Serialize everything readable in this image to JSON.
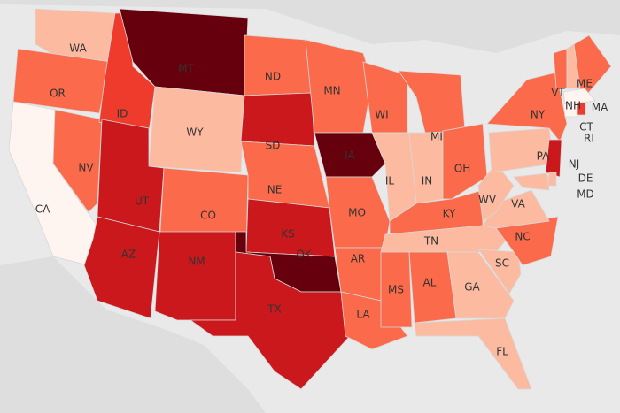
{
  "states": [
    {
      "label": "WA",
      "color": "#fcbba1"
    },
    {
      "label": "OR",
      "color": "#fb6a4a"
    },
    {
      "label": "CA",
      "color": "#fff5f0"
    },
    {
      "label": "NV",
      "color": "#fb6a4a"
    },
    {
      "label": "ID",
      "color": "#ef3b2c"
    },
    {
      "label": "MT",
      "color": "#67000d"
    },
    {
      "label": "WY",
      "color": "#fcbba1"
    },
    {
      "label": "UT",
      "color": "#cb181d"
    },
    {
      "label": "CO",
      "color": "#fb6a4a"
    },
    {
      "label": "AZ",
      "color": "#cb181d"
    },
    {
      "label": "NM",
      "color": "#cb181d"
    },
    {
      "label": "ND",
      "color": "#fb6a4a"
    },
    {
      "label": "SD",
      "color": "#cb181d"
    },
    {
      "label": "NE",
      "color": "#fb6a4a"
    },
    {
      "label": "KS",
      "color": "#cb181d"
    },
    {
      "label": "OK",
      "color": "#67000d"
    },
    {
      "label": "TX",
      "color": "#cb181d"
    },
    {
      "label": "MN",
      "color": "#fb6a4a"
    },
    {
      "label": "IA",
      "color": "#67000d"
    },
    {
      "label": "MO",
      "color": "#fb6a4a"
    },
    {
      "label": "AR",
      "color": "#fb6a4a"
    },
    {
      "label": "LA",
      "color": "#fb6a4a"
    },
    {
      "label": "WI",
      "color": "#fb6a4a"
    },
    {
      "label": "IL",
      "color": "#fcbba1"
    },
    {
      "label": "MI",
      "color": "#fb6a4a"
    },
    {
      "label": "IN",
      "color": "#fcbba1"
    },
    {
      "label": "OH",
      "color": "#fb6a4a"
    },
    {
      "label": "KY",
      "color": "#fb6a4a"
    },
    {
      "label": "TN",
      "color": "#fcbba1"
    },
    {
      "label": "MS",
      "color": "#fb6a4a"
    },
    {
      "label": "AL",
      "color": "#fb6a4a"
    },
    {
      "label": "GA",
      "color": "#fcbba1"
    },
    {
      "label": "FL",
      "color": "#fcbba1"
    },
    {
      "label": "SC",
      "color": "#fcbba1"
    },
    {
      "label": "NC",
      "color": "#fb6a4a"
    },
    {
      "label": "VA",
      "color": "#fcbba1"
    },
    {
      "label": "WV",
      "color": "#fcbba1"
    },
    {
      "label": "PA",
      "color": "#fcbba1"
    },
    {
      "label": "NY",
      "color": "#fb6a4a"
    },
    {
      "label": "NJ",
      "color": "#cb181d"
    },
    {
      "label": "DE",
      "color": "#fcbba1"
    },
    {
      "label": "MD",
      "color": "#fcbba1"
    },
    {
      "label": "VT",
      "color": "#fb6a4a"
    },
    {
      "label": "NH",
      "color": "#fcbba1"
    },
    {
      "label": "ME",
      "color": "#fb6a4a"
    },
    {
      "label": "MA",
      "color": "#fff5f0"
    },
    {
      "label": "CT",
      "color": "#fff5f0"
    },
    {
      "label": "RI",
      "color": "#ef3b2c"
    }
  ]
}
